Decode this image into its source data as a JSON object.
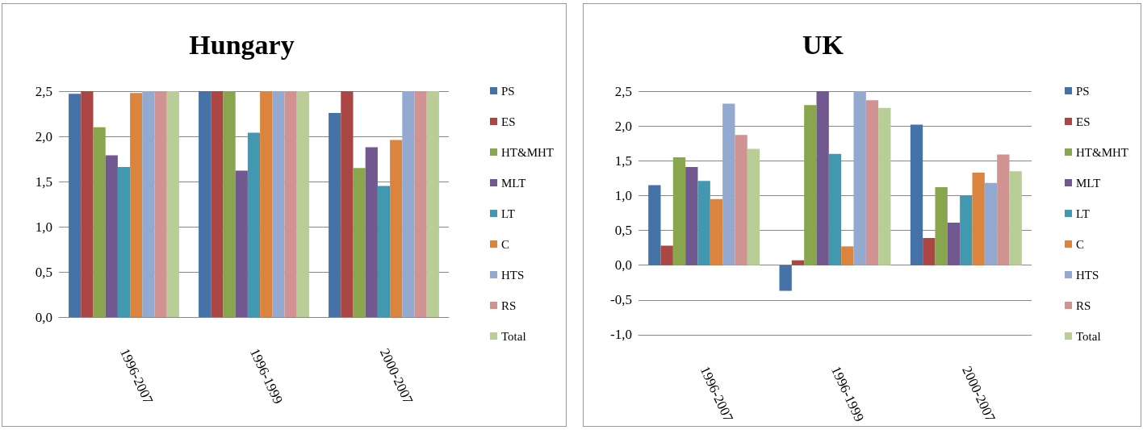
{
  "chart_data": [
    {
      "type": "bar",
      "title": "Hungary",
      "categories": [
        "1996-2007",
        "1996-1999",
        "2000-2007"
      ],
      "series": [
        {
          "name": "PS",
          "color": "#4572a7",
          "values": [
            2.47,
            2.5,
            2.26
          ]
        },
        {
          "name": "ES",
          "color": "#aa4643",
          "values": [
            2.5,
            2.5,
            2.5
          ]
        },
        {
          "name": "HT&MHT",
          "color": "#89a54e",
          "values": [
            2.1,
            2.5,
            1.65
          ]
        },
        {
          "name": "MLT",
          "color": "#71588f",
          "values": [
            1.79,
            1.62,
            1.88
          ]
        },
        {
          "name": "LT",
          "color": "#4198af",
          "values": [
            1.66,
            2.04,
            1.45
          ]
        },
        {
          "name": "C",
          "color": "#db843d",
          "values": [
            2.48,
            2.5,
            1.96
          ]
        },
        {
          "name": "HTS",
          "color": "#93a9cf",
          "values": [
            2.5,
            2.5,
            2.5
          ]
        },
        {
          "name": "RS",
          "color": "#d19392",
          "values": [
            2.5,
            2.5,
            2.5
          ]
        },
        {
          "name": "Total",
          "color": "#b9cd96",
          "values": [
            2.5,
            2.5,
            2.5
          ]
        }
      ],
      "ylim": [
        0,
        2.5
      ],
      "yticks": [
        {
          "value": 0,
          "label": "0,0"
        },
        {
          "value": 0.5,
          "label": "0,5"
        },
        {
          "value": 1,
          "label": "1,0"
        },
        {
          "value": 1.5,
          "label": "1,5"
        },
        {
          "value": 2,
          "label": "2,0"
        },
        {
          "value": 2.5,
          "label": "2,5"
        }
      ],
      "grid": "y",
      "legend": "right"
    },
    {
      "type": "bar",
      "title": "UK",
      "categories": [
        "1996-2007",
        "1996-1999",
        "2000-2007"
      ],
      "series": [
        {
          "name": "PS",
          "color": "#4572a7",
          "values": [
            1.15,
            -0.37,
            2.02
          ]
        },
        {
          "name": "ES",
          "color": "#aa4643",
          "values": [
            0.28,
            0.07,
            0.39
          ]
        },
        {
          "name": "HT&MHT",
          "color": "#89a54e",
          "values": [
            1.55,
            2.3,
            1.12
          ]
        },
        {
          "name": "MLT",
          "color": "#71588f",
          "values": [
            1.41,
            2.5,
            0.61
          ]
        },
        {
          "name": "LT",
          "color": "#4198af",
          "values": [
            1.21,
            1.6,
            1.0
          ]
        },
        {
          "name": "C",
          "color": "#db843d",
          "values": [
            0.95,
            0.27,
            1.33
          ]
        },
        {
          "name": "HTS",
          "color": "#93a9cf",
          "values": [
            2.32,
            2.5,
            1.18
          ]
        },
        {
          "name": "RS",
          "color": "#d19392",
          "values": [
            1.87,
            2.37,
            1.59
          ]
        },
        {
          "name": "Total",
          "color": "#b9cd96",
          "values": [
            1.67,
            2.26,
            1.35
          ]
        }
      ],
      "ylim": [
        -1,
        2.5
      ],
      "yticks": [
        {
          "value": -1,
          "label": "-1,0"
        },
        {
          "value": -0.5,
          "label": "-0,5"
        },
        {
          "value": 0,
          "label": "0,0"
        },
        {
          "value": 0.5,
          "label": "0,5"
        },
        {
          "value": 1,
          "label": "1,0"
        },
        {
          "value": 1.5,
          "label": "1,5"
        },
        {
          "value": 2,
          "label": "2,0"
        },
        {
          "value": 2.5,
          "label": "2,5"
        }
      ],
      "grid": "y",
      "legend": "right"
    }
  ]
}
